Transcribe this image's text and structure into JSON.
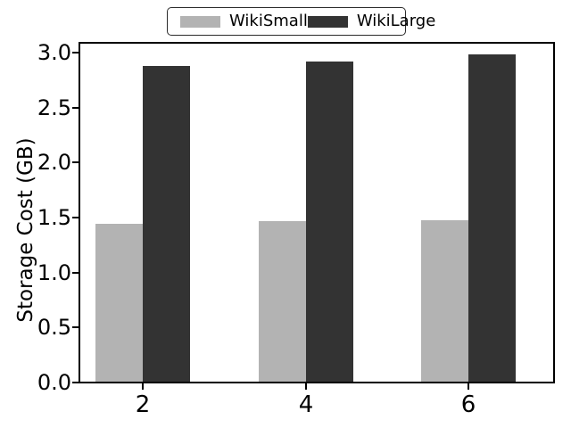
{
  "chart_data": {
    "type": "bar",
    "title": "",
    "xlabel": "",
    "ylabel": "Storage Cost (GB)",
    "categories": [
      "2",
      "4",
      "6"
    ],
    "series": [
      {
        "name": "WikiSmall",
        "color": "#b3b3b3",
        "values": [
          1.44,
          1.46,
          1.47
        ]
      },
      {
        "name": "WikiLarge",
        "color": "#333333",
        "values": [
          2.88,
          2.92,
          2.98
        ]
      }
    ],
    "ylim": [
      0,
      3.08
    ],
    "yticks": [
      "0.0",
      "0.5",
      "1.0",
      "1.5",
      "2.0",
      "2.5",
      "3.0"
    ],
    "ytick_values": [
      0,
      0.5,
      1.0,
      1.5,
      2.0,
      2.5,
      3.0
    ],
    "grid": false,
    "legend_position": "top-center",
    "colors": {
      "background": "#ffffff",
      "axis": "#000000",
      "text": "#000000"
    }
  }
}
